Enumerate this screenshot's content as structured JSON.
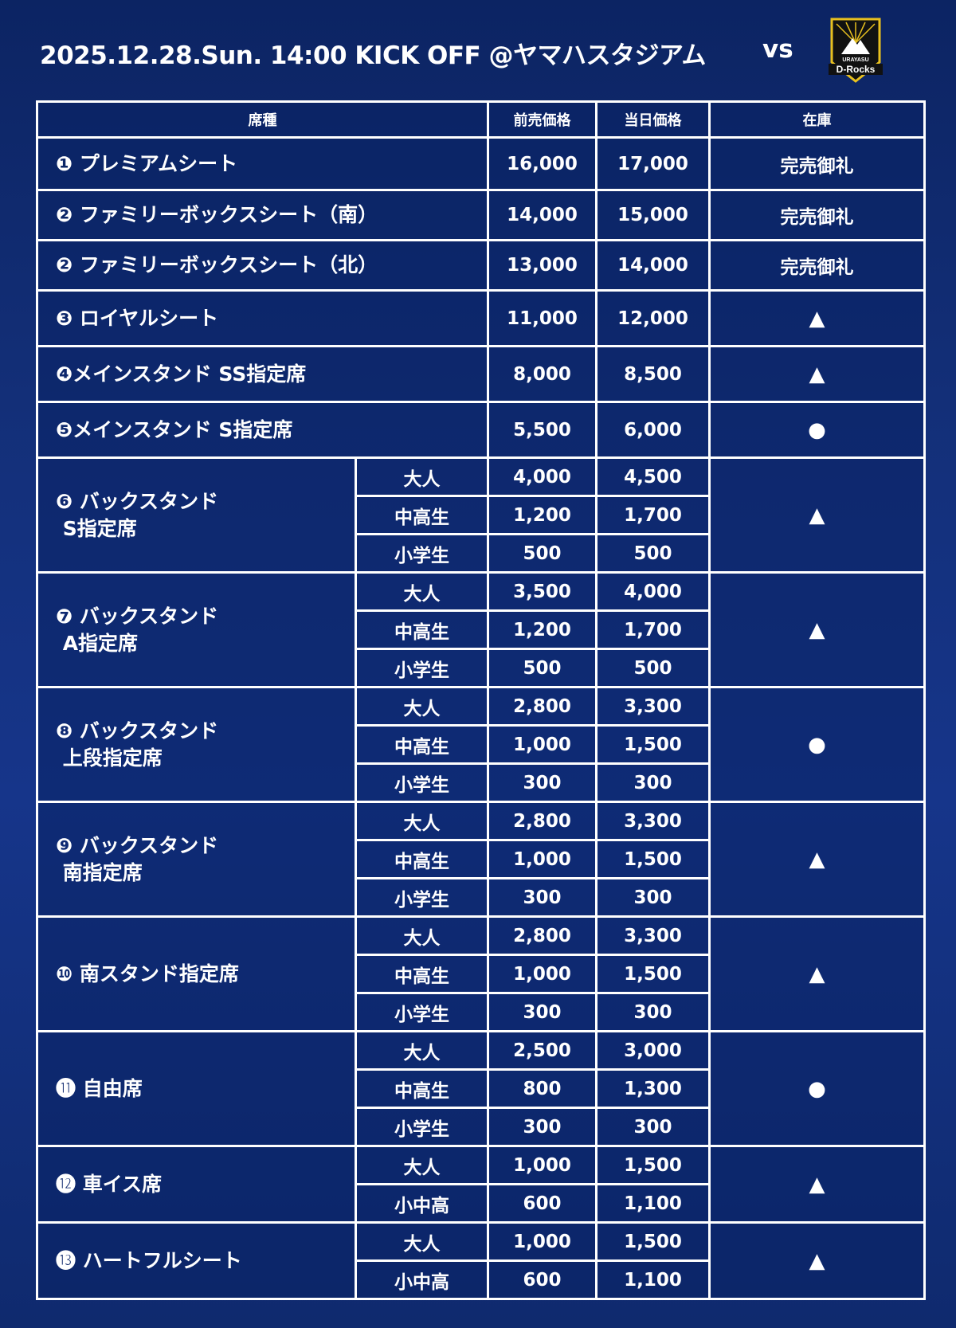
{
  "header": {
    "title": "2025.12.28.Sun. 14:00 KICK OFF @ヤマハスタジアム",
    "vs": "vs",
    "opponent_logo_text": "URAYASU D-Rocks"
  },
  "table": {
    "columns": [
      "席種",
      "前売価格",
      "当日価格",
      "在庫"
    ],
    "seats": [
      {
        "name": "❶ プレミアムシート",
        "advance": "16,000",
        "day": "17,000",
        "stock": "完売御礼"
      },
      {
        "name": "❷ ファミリーボックスシート（南）",
        "advance": "14,000",
        "day": "15,000",
        "stock": "完売御礼"
      },
      {
        "name": "❷ ファミリーボックスシート（北）",
        "advance": "13,000",
        "day": "14,000",
        "stock": "完売御礼"
      },
      {
        "name": "❸ ロイヤルシート",
        "advance": "11,000",
        "day": "12,000",
        "stock": "▲"
      },
      {
        "name": "❹メインスタンド SS指定席",
        "advance": "8,000",
        "day": "8,500",
        "stock": "▲"
      },
      {
        "name": "❺メインスタンド S指定席",
        "advance": "5,500",
        "day": "6,000",
        "stock": "●"
      },
      {
        "name": "❻ バックスタンド\n S指定席",
        "stock": "▲",
        "tiers": [
          {
            "label": "大人",
            "advance": "4,000",
            "day": "4,500"
          },
          {
            "label": "中高生",
            "advance": "1,200",
            "day": "1,700"
          },
          {
            "label": "小学生",
            "advance": "500",
            "day": "500"
          }
        ]
      },
      {
        "name": "❼ バックスタンド\n A指定席",
        "stock": "▲",
        "tiers": [
          {
            "label": "大人",
            "advance": "3,500",
            "day": "4,000"
          },
          {
            "label": "中高生",
            "advance": "1,200",
            "day": "1,700"
          },
          {
            "label": "小学生",
            "advance": "500",
            "day": "500"
          }
        ]
      },
      {
        "name": "❽ バックスタンド\n 上段指定席",
        "stock": "●",
        "tiers": [
          {
            "label": "大人",
            "advance": "2,800",
            "day": "3,300"
          },
          {
            "label": "中高生",
            "advance": "1,000",
            "day": "1,500"
          },
          {
            "label": "小学生",
            "advance": "300",
            "day": "300"
          }
        ]
      },
      {
        "name": "❾ バックスタンド\n 南指定席",
        "stock": "▲",
        "tiers": [
          {
            "label": "大人",
            "advance": "2,800",
            "day": "3,300"
          },
          {
            "label": "中高生",
            "advance": "1,000",
            "day": "1,500"
          },
          {
            "label": "小学生",
            "advance": "300",
            "day": "300"
          }
        ]
      },
      {
        "name": "❿ 南スタンド指定席",
        "stock": "▲",
        "tiers": [
          {
            "label": "大人",
            "advance": "2,800",
            "day": "3,300"
          },
          {
            "label": "中高生",
            "advance": "1,000",
            "day": "1,500"
          },
          {
            "label": "小学生",
            "advance": "300",
            "day": "300"
          }
        ]
      },
      {
        "name": "⓫ 自由席",
        "stock": "●",
        "tiers": [
          {
            "label": "大人",
            "advance": "2,500",
            "day": "3,000"
          },
          {
            "label": "中高生",
            "advance": "800",
            "day": "1,300"
          },
          {
            "label": "小学生",
            "advance": "300",
            "day": "300"
          }
        ]
      },
      {
        "name": "⓬ 車イス席",
        "stock": "▲",
        "tiers": [
          {
            "label": "大人",
            "advance": "1,000",
            "day": "1,500"
          },
          {
            "label": "小中高",
            "advance": "600",
            "day": "1,100"
          }
        ]
      },
      {
        "name": "⓭ ハートフルシート",
        "stock": "▲",
        "tiers": [
          {
            "label": "大人",
            "advance": "1,000",
            "day": "1,500"
          },
          {
            "label": "小中高",
            "advance": "600",
            "day": "1,100"
          }
        ]
      }
    ]
  },
  "colors": {
    "background": "#132f78",
    "lines": "#ffffff",
    "logo_gold": "#e8c01e"
  }
}
